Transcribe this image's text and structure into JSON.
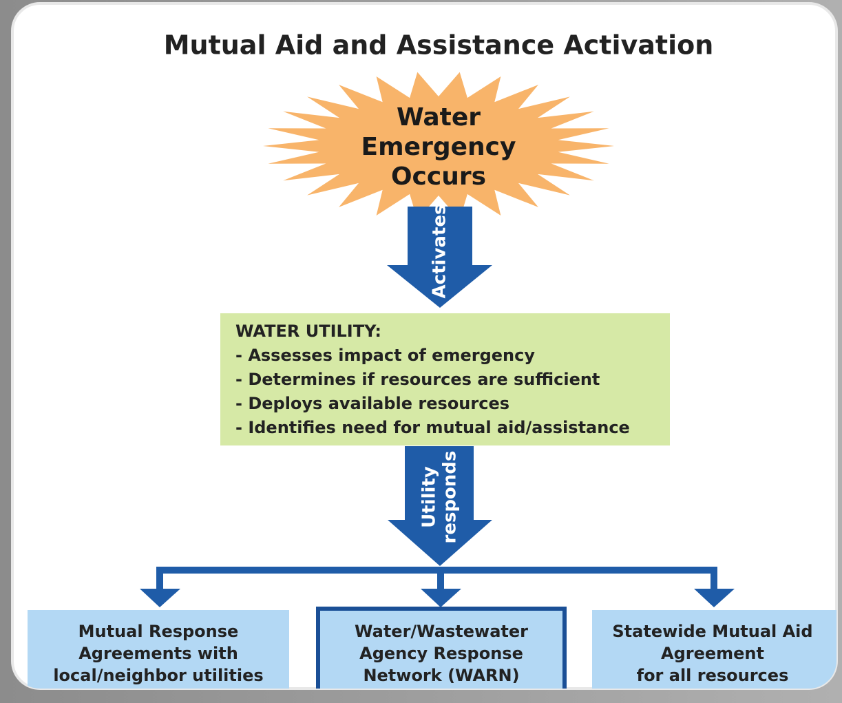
{
  "title": "Mutual Aid and Assistance Activation",
  "burst": {
    "lines": [
      "Water",
      "Emergency",
      "Occurs"
    ]
  },
  "arrows": [
    {
      "lines": [
        "Activates"
      ]
    },
    {
      "lines": [
        "Utility",
        "responds"
      ]
    }
  ],
  "utility": {
    "heading": "WATER UTILITY:",
    "items": [
      "- Assesses impact of emergency",
      "- Determines if resources are sufficient",
      "- Deploys available resources",
      "- Identifies need for mutual aid/assistance"
    ]
  },
  "targets": [
    {
      "lines": [
        "Mutual Response",
        "Agreements with",
        "local/neighbor utilities"
      ]
    },
    {
      "lines": [
        "Water/Wastewater",
        "Agency Response",
        "Network (WARN)"
      ]
    },
    {
      "lines": [
        "Statewide Mutual Aid",
        "Agreement",
        "for all resources"
      ]
    }
  ]
}
